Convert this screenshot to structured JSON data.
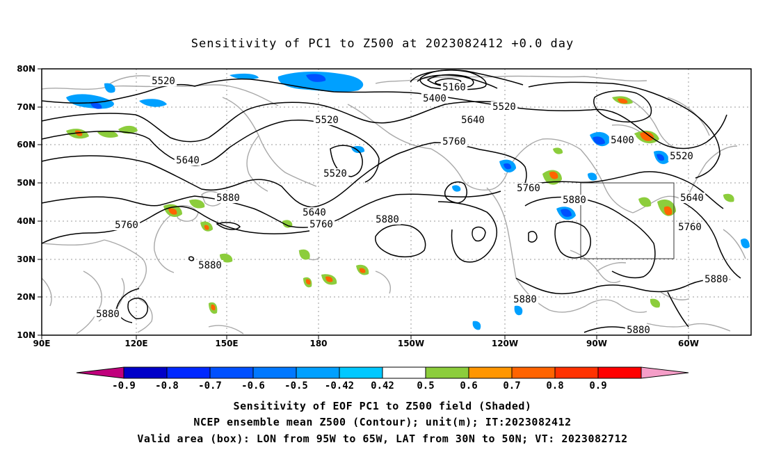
{
  "title": "Sensitivity of PC1 to Z500 at 2023082412 +0.0 day",
  "map": {
    "lat_labels": [
      "80N",
      "70N",
      "60N",
      "50N",
      "40N",
      "30N",
      "20N",
      "10N"
    ],
    "lon_labels": [
      "90E",
      "120E",
      "150E",
      "180",
      "150W",
      "120W",
      "90W",
      "60W"
    ],
    "contour_labels": [
      {
        "text": "5520"
      },
      {
        "text": "5160"
      },
      {
        "text": "5400"
      },
      {
        "text": "5520"
      },
      {
        "text": "5520"
      },
      {
        "text": "5640"
      },
      {
        "text": "5760"
      },
      {
        "text": "5400"
      },
      {
        "text": "5520"
      },
      {
        "text": "5640"
      },
      {
        "text": "5520"
      },
      {
        "text": "5760"
      },
      {
        "text": "5880"
      },
      {
        "text": "5640"
      },
      {
        "text": "5760"
      },
      {
        "text": "5880"
      },
      {
        "text": "5760"
      },
      {
        "text": "5880"
      },
      {
        "text": "5640"
      },
      {
        "text": "5760"
      },
      {
        "text": "5880"
      },
      {
        "text": "5880"
      },
      {
        "text": "5880"
      },
      {
        "text": "5880"
      },
      {
        "text": "5880"
      }
    ],
    "valid_box": {
      "lon_min": "95W",
      "lon_max": "65W",
      "lat_min": "30N",
      "lat_max": "50N"
    }
  },
  "colorbar": {
    "labels": [
      "-0.9",
      "-0.8",
      "-0.7",
      "-0.6",
      "-0.5",
      "-0.42",
      "0.42",
      "0.5",
      "0.6",
      "0.7",
      "0.8",
      "0.9"
    ],
    "colors": [
      "#0000c8",
      "#0028ff",
      "#0050ff",
      "#0078ff",
      "#00a0ff",
      "#00c8ff",
      "#ffffff",
      "#8ccd3c",
      "#ff9600",
      "#ff6400",
      "#ff3200",
      "#ff0000"
    ],
    "low_end_color": "#c0007c",
    "high_end_color": "#f59ec8"
  },
  "captions": {
    "line1": "Sensitivity of EOF PC1 to Z500 field (Shaded)",
    "line2": "NCEP ensemble mean Z500 (Contour); unit(m); IT:2023082412",
    "line3": "Valid area (box): LON from 95W to 65W, LAT from 30N to 50N; VT: 2023082712"
  }
}
